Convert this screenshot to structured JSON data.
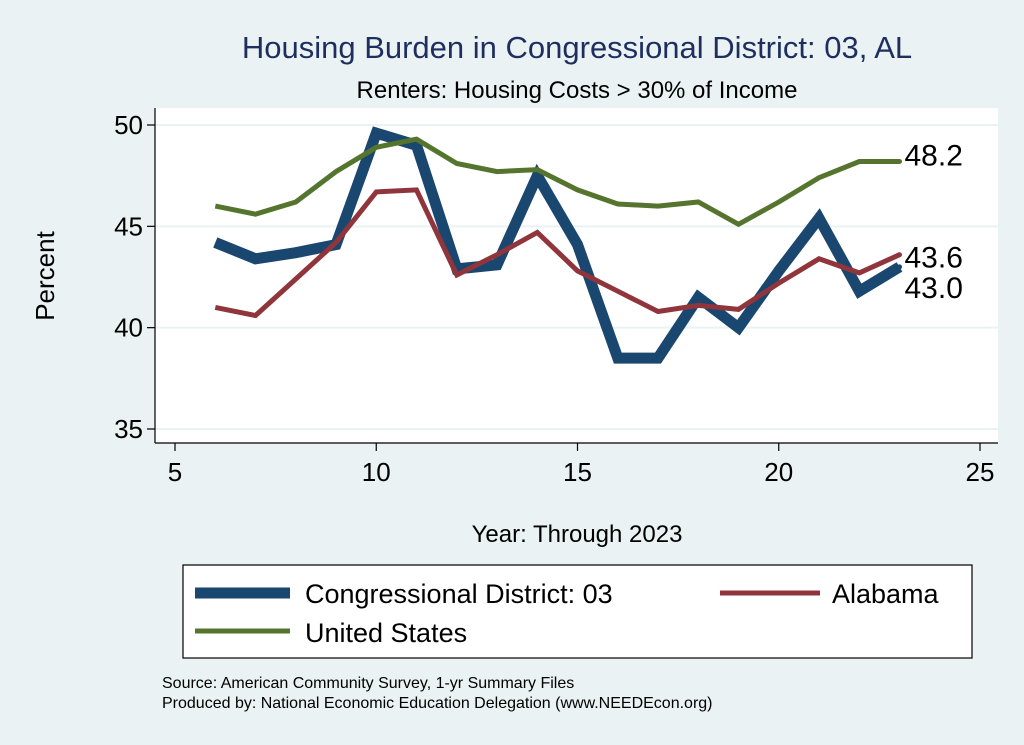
{
  "chart_data": {
    "type": "line",
    "title": "Housing Burden in Congressional District:  03, AL",
    "subtitle": "Renters: Housing Costs > 30% of Income",
    "xlabel": "Year: Through 2023",
    "ylabel": "Percent",
    "xlim": [
      5,
      25
    ],
    "ylim": [
      35,
      50
    ],
    "x_ticks": [
      "5",
      "10",
      "15",
      "20",
      "25"
    ],
    "y_ticks": [
      "35",
      "40",
      "45",
      "50"
    ],
    "grid": "horizontal",
    "legend_position": "bottom",
    "series": [
      {
        "name": "Congressional District:  03",
        "color": "#1a476f",
        "x": [
          6,
          7,
          8,
          9,
          10,
          11,
          12,
          13,
          14,
          15,
          16,
          17,
          18,
          19,
          20,
          21,
          22,
          23
        ],
        "values": [
          44.2,
          43.4,
          43.7,
          44.1,
          49.6,
          49.0,
          42.9,
          43.1,
          47.5,
          44.1,
          38.5,
          38.5,
          41.5,
          40.0,
          42.8,
          45.4,
          41.8,
          43.0
        ],
        "end_label": "43.0"
      },
      {
        "name": "Alabama",
        "color": "#90353b",
        "x": [
          6,
          7,
          8,
          9,
          10,
          11,
          12,
          13,
          14,
          15,
          16,
          17,
          18,
          19,
          20,
          21,
          22,
          23
        ],
        "values": [
          41.0,
          40.6,
          42.4,
          44.2,
          46.7,
          46.8,
          42.6,
          43.6,
          44.7,
          42.8,
          41.8,
          40.8,
          41.1,
          40.9,
          42.2,
          43.4,
          42.7,
          43.6
        ],
        "end_label": "43.6"
      },
      {
        "name": "United States",
        "color": "#55752f",
        "x": [
          6,
          7,
          8,
          9,
          10,
          11,
          12,
          13,
          14,
          15,
          16,
          17,
          18,
          19,
          20,
          21,
          22,
          23
        ],
        "values": [
          46.0,
          45.6,
          46.2,
          47.7,
          48.9,
          49.3,
          48.1,
          47.7,
          47.8,
          46.8,
          46.1,
          46.0,
          46.2,
          45.1,
          46.2,
          47.4,
          48.2,
          48.2
        ],
        "end_label": "48.2"
      }
    ],
    "source": "Source: American Community Survey, 1-yr Summary Files",
    "producer": "Produced by: National Economic Education Delegation (www.NEEDEcon.org)"
  }
}
